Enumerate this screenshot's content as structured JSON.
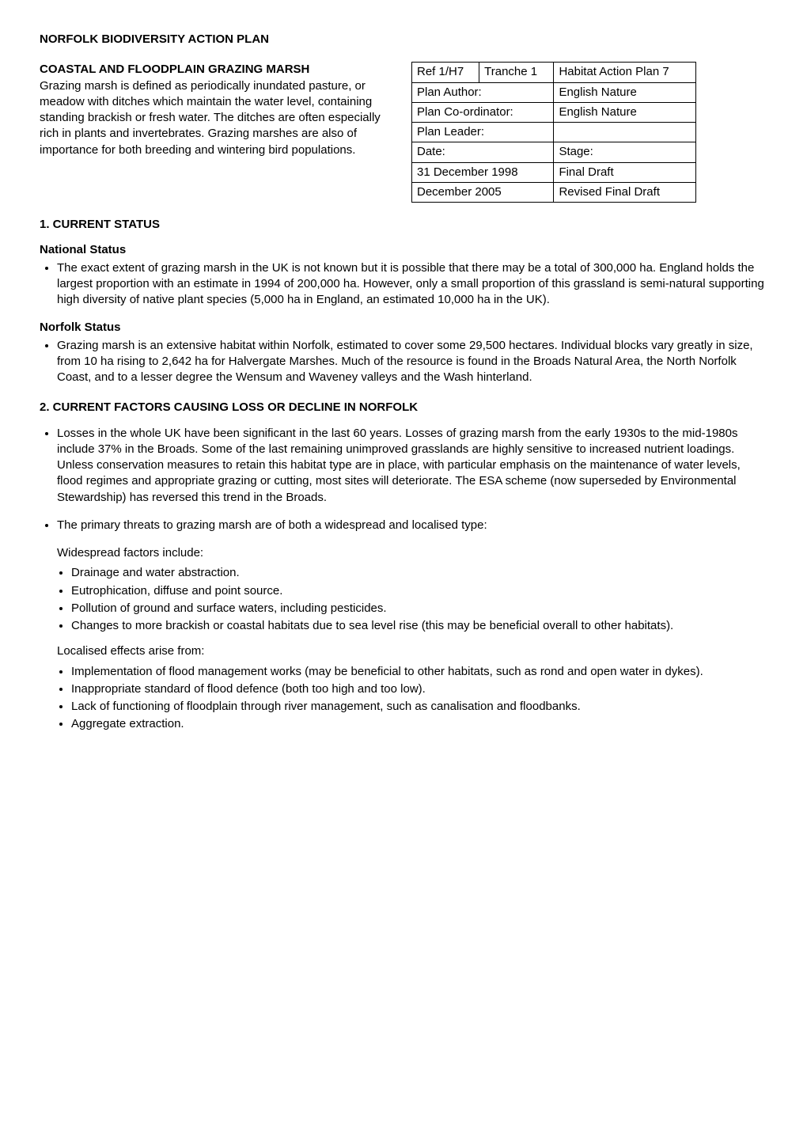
{
  "title": "NORFOLK BIODIVERSITY ACTION PLAN",
  "intro": {
    "heading": "COASTAL AND FLOODPLAIN GRAZING MARSH",
    "body": "Grazing marsh is defined as periodically inundated pasture, or meadow with ditches which maintain the water level, containing standing brackish or fresh water.  The ditches are often especially rich in plants and invertebrates.  Grazing marshes are also of importance for both breeding and wintering bird populations."
  },
  "info_table": {
    "rows": [
      {
        "c1": "Ref 1/H7",
        "c2": "Tranche 1",
        "c3": "Habitat Action Plan 7",
        "span12": false
      },
      {
        "c1": "Plan Author:",
        "c2": "",
        "c3": "English Nature",
        "span12": true
      },
      {
        "c1": "Plan Co-ordinator:",
        "c2": "",
        "c3": "English Nature",
        "span12": true
      },
      {
        "c1": "Plan Leader:",
        "c2": "",
        "c3": "",
        "span12": true
      },
      {
        "c1": "Date:",
        "c2": "",
        "c3": "Stage:",
        "span12": true
      },
      {
        "c1": "31 December 1998",
        "c2": "",
        "c3": "Final Draft",
        "span12": true
      },
      {
        "c1": "December 2005",
        "c2": "",
        "c3": "Revised Final Draft",
        "span12": true
      }
    ]
  },
  "section1": {
    "heading": "1. CURRENT STATUS",
    "national": {
      "heading": "National Status",
      "bullet": "The exact extent of grazing marsh in the UK is not known but it is possible that there may be a total of 300,000 ha.  England holds the largest proportion with an estimate in 1994 of 200,000 ha.  However, only a small proportion of this grassland is semi-natural supporting high diversity of native plant species (5,000 ha in England, an estimated 10,000 ha in the UK)."
    },
    "norfolk": {
      "heading": "Norfolk Status",
      "bullet": "Grazing marsh is an extensive habitat within Norfolk, estimated to cover some 29,500 hectares. Individual blocks vary greatly in size, from 10 ha rising to 2,642 ha for Halvergate Marshes.  Much of the resource is found in the Broads Natural Area, the North Norfolk Coast, and to a lesser degree the Wensum and Waveney valleys and the Wash hinterland."
    }
  },
  "section2": {
    "heading": "2. CURRENT FACTORS CAUSING LOSS OR DECLINE IN NORFOLK",
    "bullets": [
      "Losses in the whole UK have been significant in the last 60 years.  Losses of grazing marsh from the early 1930s to the mid-1980s include 37% in the Broads.  Some of the last remaining unimproved grasslands are highly sensitive to increased nutrient loadings.  Unless conservation measures to retain this habitat type are in place, with particular emphasis on the maintenance of water levels, flood regimes and appropriate grazing or cutting, most sites will deteriorate.  The ESA scheme (now superseded by Environmental Stewardship) has reversed this trend in the Broads.",
      "The primary threats to grazing marsh are of both a widespread and localised type:"
    ],
    "widespread": {
      "intro": "Widespread factors include:",
      "items": [
        "Drainage and water abstraction.",
        "Eutrophication, diffuse and point source.",
        "Pollution of ground and surface waters, including pesticides.",
        "Changes to more brackish or coastal habitats due to sea level rise (this may be beneficial overall to other habitats)."
      ]
    },
    "localised": {
      "intro": "Localised effects arise from:",
      "items": [
        "Implementation of flood management works (may be beneficial to other habitats, such as rond and open water in dykes).",
        "Inappropriate standard of flood defence (both too high and too low).",
        "Lack of functioning of floodplain through river management, such as canalisation and floodbanks.",
        "Aggregate extraction."
      ]
    }
  }
}
